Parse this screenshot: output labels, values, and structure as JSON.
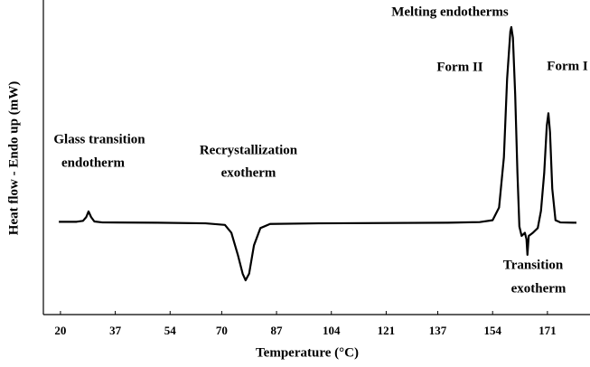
{
  "chart_data": {
    "type": "line",
    "x_label": "Temperature (°C)",
    "y_label": "Heat flow - Endo up (mW)",
    "annotations": [
      "Glass transition",
      "endotherm",
      "Recrystallization",
      "exotherm",
      "Melting endotherms",
      "Form II",
      "Form I",
      "Transition",
      "exotherm"
    ],
    "xlim": [
      14.7,
      184.2
    ],
    "ylim": [
      0,
      100
    ],
    "xticks": [
      20,
      37,
      54,
      70,
      87,
      104,
      121,
      137,
      154,
      171
    ],
    "series": [
      {
        "color": "#000000",
        "x": [
          19.5,
          25,
          27,
          28,
          28.7,
          29.5,
          30.5,
          33,
          50,
          65,
          71,
          73,
          75,
          76.5,
          77.4,
          78.5,
          80,
          82,
          85,
          100,
          140,
          150,
          154,
          156,
          157.5,
          158.5,
          159.5,
          159.8,
          160.3,
          161,
          161.7,
          162.3,
          163,
          164,
          164.5,
          164.8,
          165.2,
          166.5,
          168,
          169,
          170,
          170.8,
          171.3,
          171.8,
          172.5,
          173.5,
          175,
          180
        ],
        "values": [
          29.5,
          29.5,
          29.8,
          31,
          32.8,
          31,
          29.6,
          29.3,
          29.2,
          29,
          28.5,
          26,
          19,
          13,
          10.9,
          13,
          22,
          27.5,
          28.8,
          29,
          29.2,
          29.4,
          30,
          34,
          50,
          75,
          90,
          91.4,
          88,
          70,
          45,
          28,
          25,
          26,
          24,
          19,
          25,
          26,
          27.5,
          33,
          45,
          60,
          64,
          58,
          40,
          30,
          29.3,
          29.2
        ]
      }
    ]
  }
}
